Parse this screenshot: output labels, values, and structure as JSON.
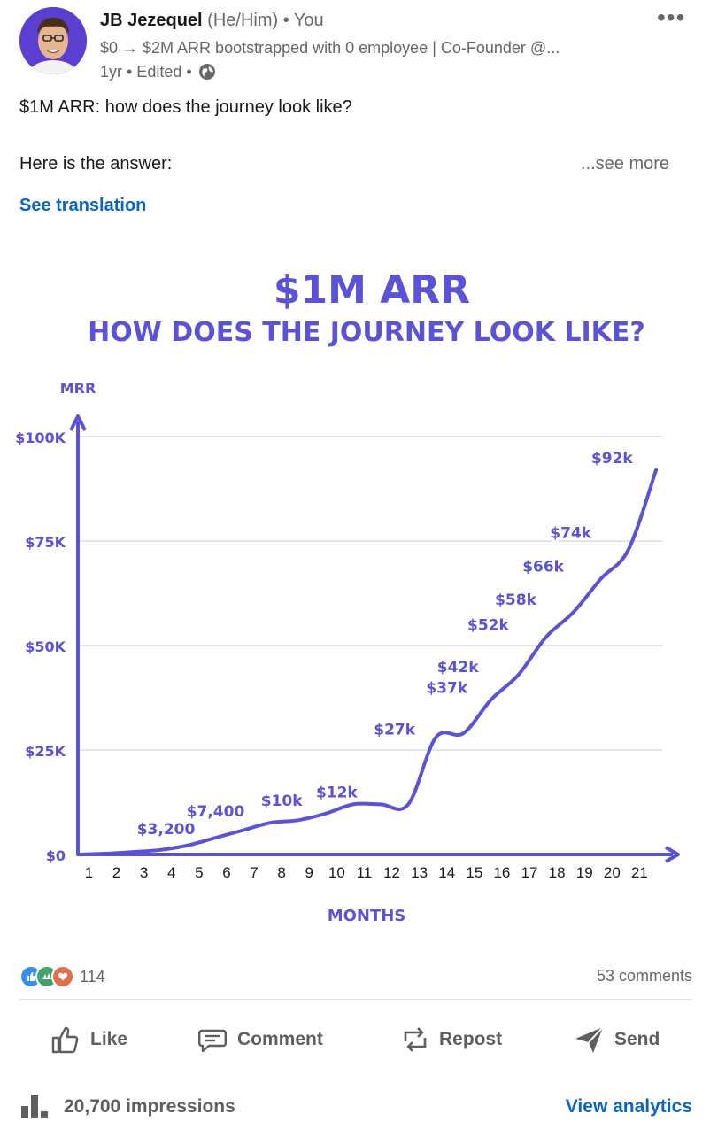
{
  "post": {
    "author": {
      "name": "JB Jezequel",
      "pronouns": "(He/Him)",
      "connection": "• You",
      "headline": "$0 → $2M ARR bootstrapped with 0 employee | Co-Founder @...",
      "time": "1yr • Edited •",
      "visibility_icon": "globe-icon"
    },
    "text_line1": "$1M ARR: how does the journey look like?",
    "text_line2": "Here is the answer:",
    "see_more": "...see more",
    "see_translation": "See translation"
  },
  "chart_data": {
    "type": "line",
    "title": "$1M ARR",
    "subtitle": "HOW DOES THE JOURNEY LOOK LIKE?",
    "ylabel": "MRR",
    "xlabel": "MONTHS",
    "ylim": [
      0,
      100000
    ],
    "y_ticks": [
      {
        "value": 0,
        "label": "$0"
      },
      {
        "value": 25000,
        "label": "$25K"
      },
      {
        "value": 50000,
        "label": "$50K"
      },
      {
        "value": 75000,
        "label": "$75K"
      },
      {
        "value": 100000,
        "label": "$100K"
      }
    ],
    "x": [
      0,
      1,
      2,
      3,
      4,
      5,
      6,
      7,
      8,
      9,
      10,
      11,
      12,
      13,
      14,
      15,
      16,
      17,
      18,
      19,
      20,
      21
    ],
    "x_tick_labels": [
      "1",
      "2",
      "3",
      "4",
      "5",
      "6",
      "7",
      "8",
      "9",
      "10",
      "11",
      "12",
      "13",
      "14",
      "15",
      "16",
      "17",
      "18",
      "19",
      "20",
      "21"
    ],
    "values": [
      0,
      200,
      600,
      1100,
      2200,
      4000,
      5800,
      7600,
      8200,
      9800,
      12000,
      12000,
      12000,
      28000,
      29000,
      37000,
      43000,
      52000,
      58000,
      66000,
      73000,
      92000
    ],
    "grid": true,
    "color": "#5b52d5",
    "annotations": [
      {
        "label": "$3,200",
        "x": 3.2,
        "y": 3200
      },
      {
        "label": "$7,400",
        "x": 5.0,
        "y": 7400
      },
      {
        "label": "$10k",
        "x": 7.4,
        "y": 10000
      },
      {
        "label": "$12k",
        "x": 9.4,
        "y": 12000
      },
      {
        "label": "$27k",
        "x": 11.5,
        "y": 27000
      },
      {
        "label": "$37k",
        "x": 13.4,
        "y": 37000
      },
      {
        "label": "$42k",
        "x": 13.8,
        "y": 42000
      },
      {
        "label": "$52k",
        "x": 14.9,
        "y": 52000
      },
      {
        "label": "$58k",
        "x": 15.9,
        "y": 58000
      },
      {
        "label": "$66k",
        "x": 16.9,
        "y": 66000
      },
      {
        "label": "$74k",
        "x": 17.9,
        "y": 74000
      },
      {
        "label": "$92k",
        "x": 19.4,
        "y": 92000
      }
    ]
  },
  "social": {
    "reaction_count": "114",
    "comments": "53 comments",
    "reaction_icons": [
      "like-icon",
      "support-icon",
      "love-icon"
    ]
  },
  "actions": {
    "like": "Like",
    "comment": "Comment",
    "repost": "Repost",
    "send": "Send"
  },
  "footer": {
    "impressions": "20,700 impressions",
    "view_analytics": "View analytics"
  },
  "colors": {
    "brand_blue": "#0a66c2",
    "chart_purple": "#5b52d5"
  }
}
